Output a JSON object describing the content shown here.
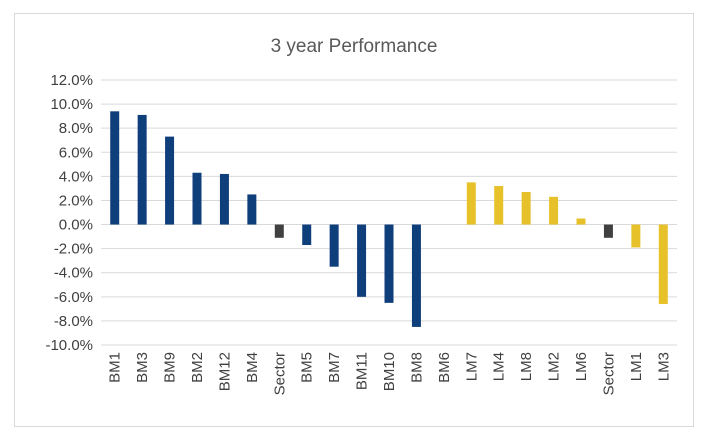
{
  "chart_data": {
    "type": "bar",
    "title": "3 year Performance",
    "xlabel": "",
    "ylabel": "",
    "ylim": [
      -10,
      12
    ],
    "yticks": [
      12,
      10,
      8,
      6,
      4,
      2,
      0,
      -2,
      -4,
      -6,
      -8,
      -10
    ],
    "ytick_labels": [
      "12.0%",
      "10.0%",
      "8.0%",
      "6.0%",
      "4.0%",
      "2.0%",
      "0.0%",
      "-2.0%",
      "-4.0%",
      "-6.0%",
      "-8.0%",
      "-10.0%"
    ],
    "grid": true,
    "legend": "none",
    "categories": [
      "BM1",
      "BM3",
      "BM9",
      "BM2",
      "BM12",
      "BM4",
      "Sector",
      "BM5",
      "BM7",
      "BM11",
      "BM10",
      "BM8",
      "BM6",
      "LM7",
      "LM4",
      "LM8",
      "LM2",
      "LM6",
      "Sector",
      "LM1",
      "LM3"
    ],
    "values": [
      9.4,
      9.1,
      7.3,
      4.3,
      4.2,
      2.5,
      -1.1,
      -1.7,
      -3.5,
      -6.0,
      -6.5,
      -8.5,
      0.0,
      3.5,
      3.2,
      2.7,
      2.3,
      0.5,
      -1.1,
      -1.9,
      -6.6
    ],
    "bar_colors": [
      "#0f3f7a",
      "#0f3f7a",
      "#0f3f7a",
      "#0f3f7a",
      "#0f3f7a",
      "#0f3f7a",
      "#404040",
      "#0f3f7a",
      "#0f3f7a",
      "#0f3f7a",
      "#0f3f7a",
      "#0f3f7a",
      "#0f3f7a",
      "#e6c12a",
      "#e6c12a",
      "#e6c12a",
      "#e6c12a",
      "#e6c12a",
      "#404040",
      "#e6c12a",
      "#e6c12a"
    ]
  }
}
